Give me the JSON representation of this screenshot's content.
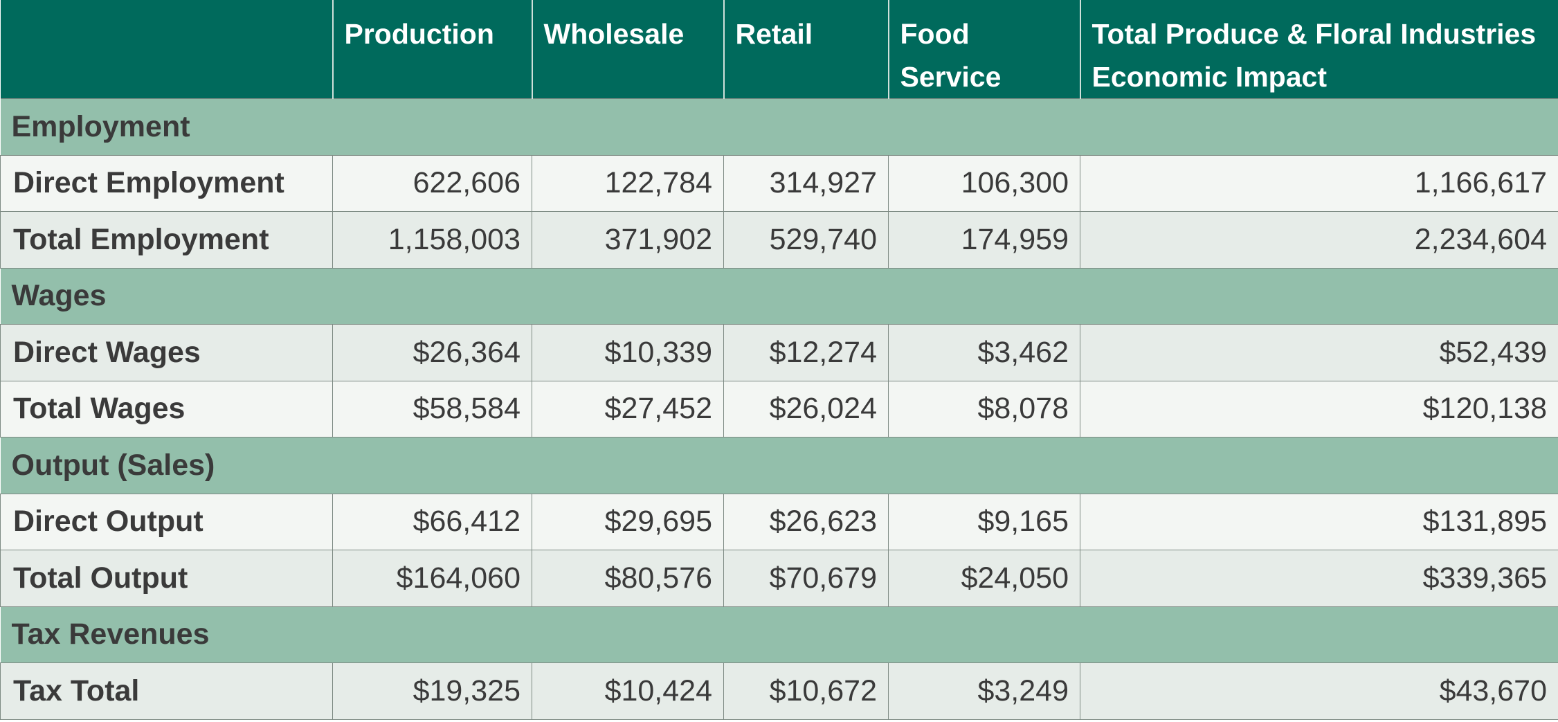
{
  "header": {
    "columns": [
      "Production",
      "Wholesale",
      "Retail",
      "Food Service",
      "Total Produce & Floral Industries Economic Impact"
    ]
  },
  "sections": [
    {
      "title": "Employment",
      "rows": [
        {
          "label": "Direct Employment",
          "cells": [
            "622,606",
            "122,784",
            "314,927",
            "106,300",
            "1,166,617"
          ]
        },
        {
          "label": "Total Employment",
          "cells": [
            "1,158,003",
            "371,902",
            "529,740",
            "174,959",
            "2,234,604"
          ]
        }
      ]
    },
    {
      "title": "Wages",
      "rows": [
        {
          "label": "Direct Wages",
          "cells": [
            "$26,364",
            "$10,339",
            "$12,274",
            "$3,462",
            "$52,439"
          ]
        },
        {
          "label": "Total Wages",
          "cells": [
            "$58,584",
            "$27,452",
            "$26,024",
            "$8,078",
            "$120,138"
          ]
        }
      ]
    },
    {
      "title": "Output (Sales)",
      "rows": [
        {
          "label": "Direct Output",
          "cells": [
            "$66,412",
            "$29,695",
            "$26,623",
            "$9,165",
            "$131,895"
          ]
        },
        {
          "label": "Total Output",
          "cells": [
            "$164,060",
            "$80,576",
            "$70,679",
            "$24,050",
            "$339,365"
          ]
        }
      ]
    },
    {
      "title": "Tax Revenues",
      "rows": [
        {
          "label": "Tax Total",
          "cells": [
            "$19,325",
            "$10,424",
            "$10,672",
            "$3,249",
            "$43,670"
          ]
        }
      ]
    }
  ]
}
